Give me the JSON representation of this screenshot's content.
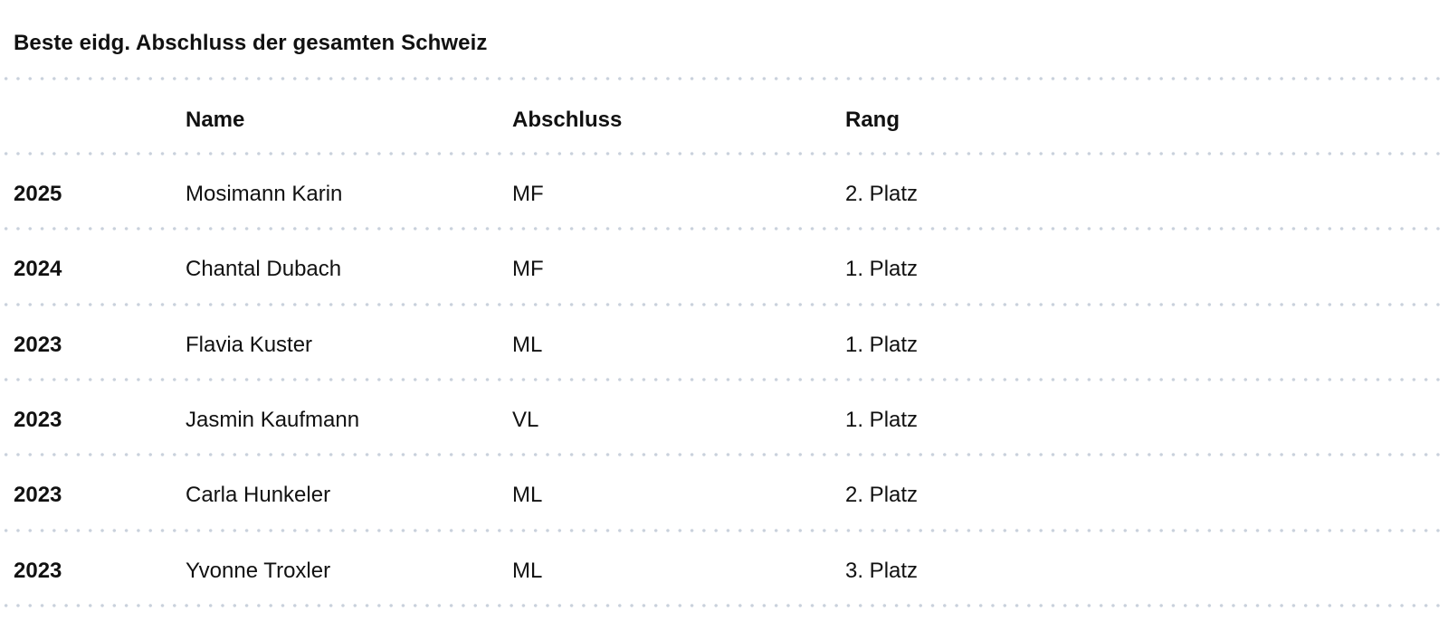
{
  "title": "Beste eidg. Abschluss der gesamten Schweiz",
  "table": {
    "headers": [
      "",
      "Name",
      "Abschluss",
      "Rang"
    ],
    "rows": [
      {
        "year": "2025",
        "name": "Mosimann Karin",
        "abschluss": "MF",
        "rang": "2. Platz"
      },
      {
        "year": "2024",
        "name": "Chantal Dubach",
        "abschluss": "MF",
        "rang": "1. Platz"
      },
      {
        "year": "2023",
        "name": "Flavia Kuster",
        "abschluss": "ML",
        "rang": "1. Platz"
      },
      {
        "year": "2023",
        "name": "Jasmin Kaufmann",
        "abschluss": "VL",
        "rang": "1. Platz"
      },
      {
        "year": "2023",
        "name": "Carla Hunkeler",
        "abschluss": "ML",
        "rang": "2. Platz"
      },
      {
        "year": "2023",
        "name": "Yvonne Troxler",
        "abschluss": "ML",
        "rang": "3. Platz"
      }
    ]
  },
  "colors": {
    "divider": "#c9d1dc",
    "text": "#111111"
  }
}
